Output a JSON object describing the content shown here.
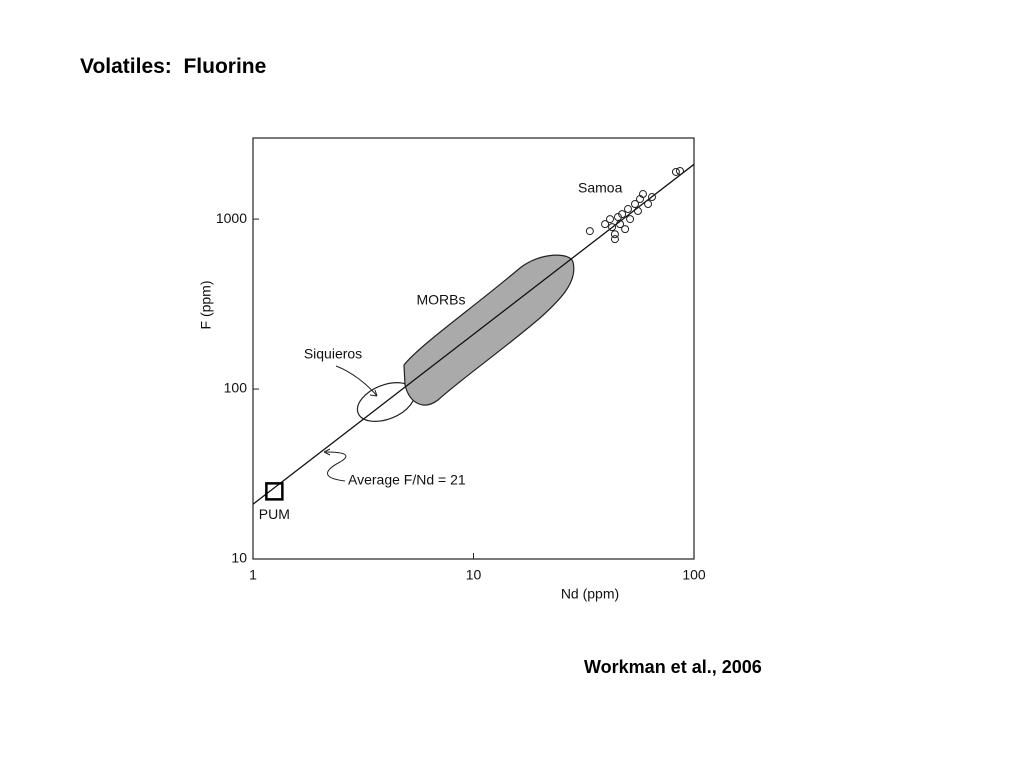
{
  "slide": {
    "title": "Volatiles:  Fluorine",
    "citation": "Workman et al., 2006"
  },
  "chart_data": {
    "type": "scatter",
    "x_label": "Nd (ppm)",
    "y_label": "F (ppm)",
    "xlim": [
      1,
      100
    ],
    "ylim": [
      10,
      3000
    ],
    "xticks": [
      1,
      10,
      100
    ],
    "yticks": [
      10,
      100,
      1000
    ],
    "log_x": true,
    "log_y": true,
    "series": [
      {
        "name": "Samoa",
        "color": "#222222",
        "x": [
          33.7,
          39.5,
          41.6,
          42.5,
          43.8,
          45.2,
          46.2,
          47.2,
          48.7,
          50.2,
          51.3,
          54.0,
          56.9,
          58.7,
          61.9,
          64.5,
          43.8,
          55.7,
          82.8,
          86.4
        ],
        "values": [
          850,
          934,
          1000,
          897,
          815,
          1028,
          934,
          1070,
          873,
          1146,
          1000,
          1226,
          1312,
          1404,
          1226,
          1348,
          762,
          1115,
          1894,
          1920
        ]
      }
    ],
    "pum": {
      "label": "PUM",
      "x": 1.25,
      "y": 25
    },
    "fit_line": {
      "label": "Average F/Nd = 21",
      "x": [
        1,
        100
      ],
      "y": [
        21,
        2100
      ]
    },
    "annotations": [
      "MORBs",
      "Siquieros"
    ]
  }
}
